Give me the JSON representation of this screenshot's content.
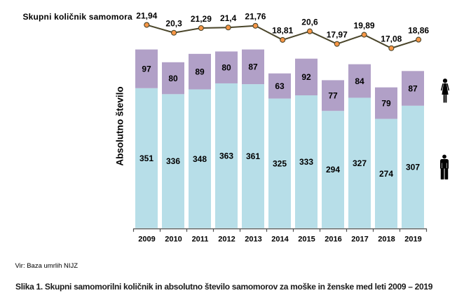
{
  "figure": {
    "title": "Skupni količnik samomora",
    "y_axis_label": "Absolutno število",
    "source": "Vir: Baza umrlih NIJZ",
    "caption": "Slika 1. Skupni samomorilni količnik in absolutno število samomorov za moške in ženske med leti 2009 – 2019"
  },
  "icons": {
    "female": "woman-icon",
    "male": "man-icon",
    "color": "#000000"
  },
  "chart_data": {
    "type": "bar",
    "subtype": "stacked-bars-with-line-overlay",
    "title": "Skupni količnik samomora",
    "xlabel": "",
    "ylabel": "Absolutno število",
    "categories": [
      "2009",
      "2010",
      "2011",
      "2012",
      "2013",
      "2014",
      "2015",
      "2016",
      "2017",
      "2018",
      "2019"
    ],
    "series": [
      {
        "name": "moški (absolutno število)",
        "role": "bar-segment-bottom",
        "icon": "man-icon",
        "color": "#b7dee8",
        "values": [
          351,
          336,
          348,
          363,
          361,
          325,
          333,
          294,
          327,
          274,
          307
        ]
      },
      {
        "name": "ženske (absolutno število)",
        "role": "bar-segment-top",
        "icon": "woman-icon",
        "color": "#b1a0c7",
        "values": [
          97,
          80,
          89,
          80,
          87,
          63,
          92,
          77,
          84,
          79,
          87
        ]
      },
      {
        "name": "Skupni količnik samomora",
        "role": "line",
        "color": "#4a452a",
        "marker_color": "#f79646",
        "values": [
          21.94,
          20.3,
          21.29,
          21.4,
          21.76,
          18.81,
          20.6,
          17.97,
          19.89,
          17.08,
          18.86
        ],
        "labels": [
          "21,94",
          "20,3",
          "21,29",
          "21,4",
          "21,76",
          "18,81",
          "20,6",
          "17,97",
          "19,89",
          "17,08",
          "18,86"
        ]
      }
    ],
    "axis_color": "#4d4d4d",
    "data_label_color": "#000000",
    "grid": "off",
    "legend_position": "none"
  }
}
